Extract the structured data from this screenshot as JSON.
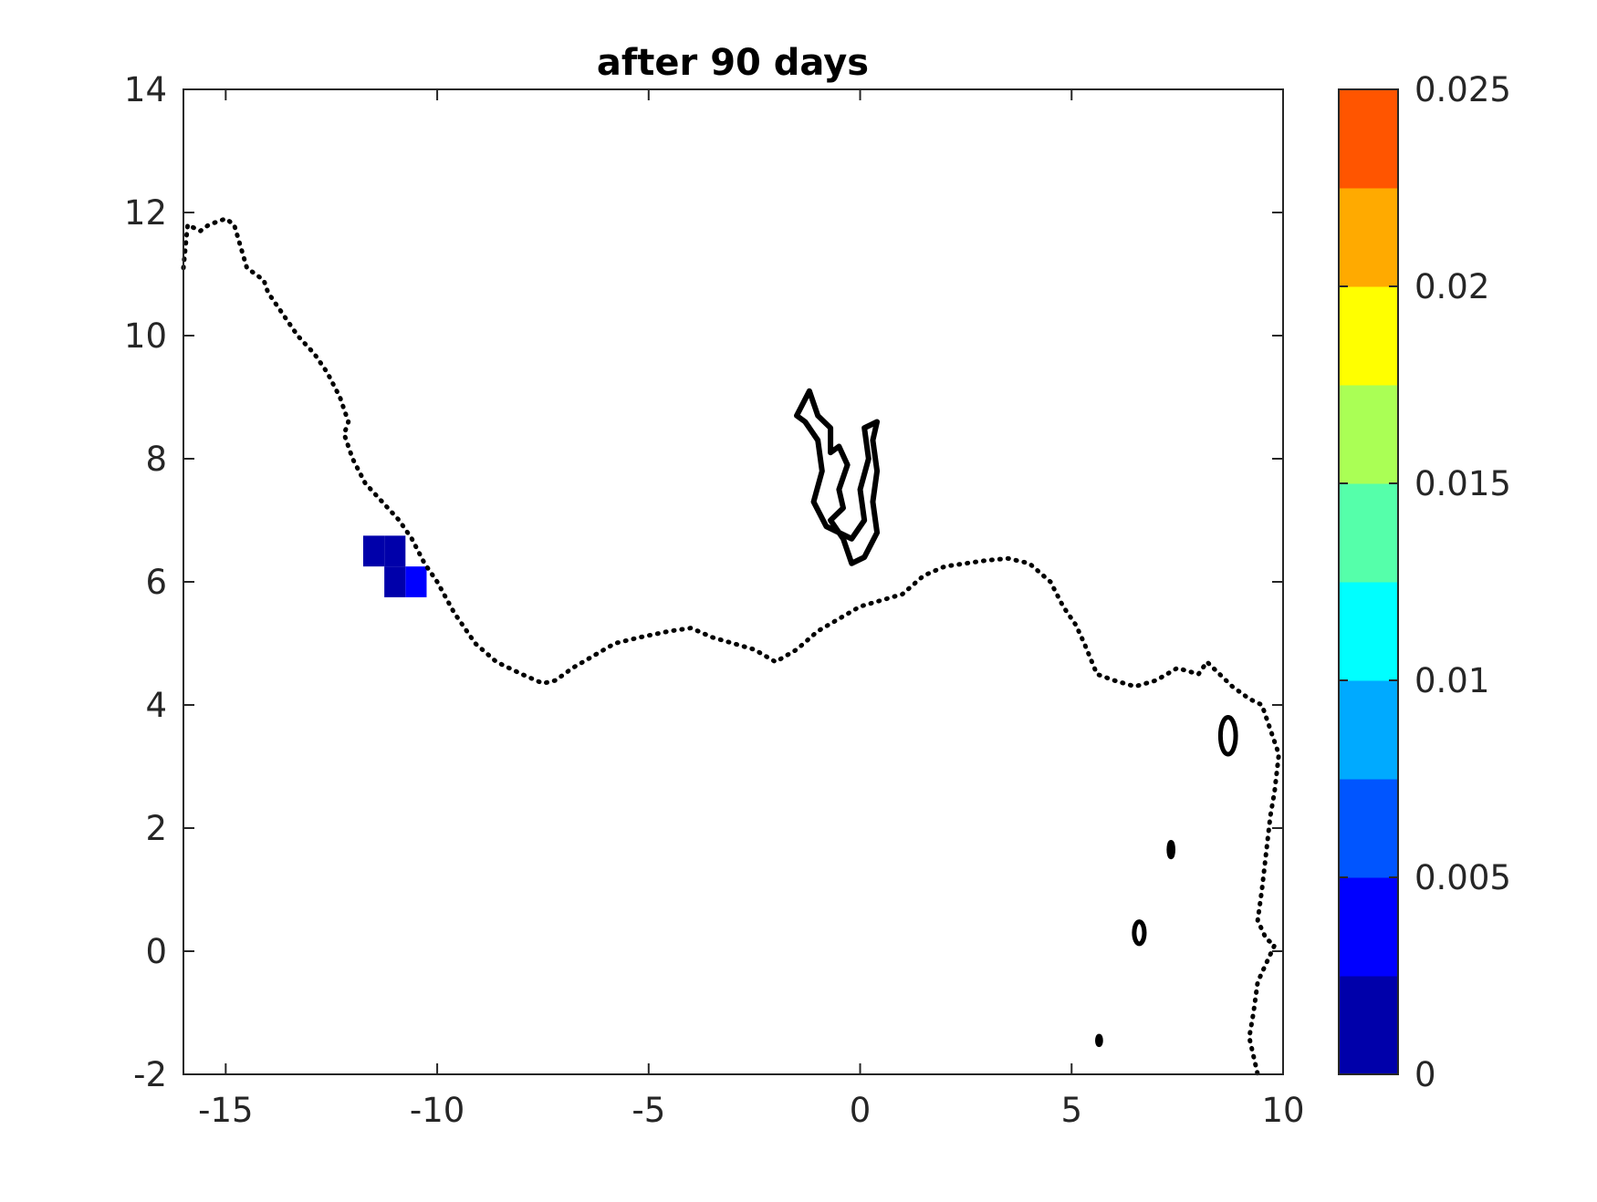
{
  "chart_data": {
    "type": "heatmap",
    "title": "after 90 days",
    "xlabel": "",
    "ylabel": "",
    "xlim": [
      -16,
      10
    ],
    "ylim": [
      -2,
      14
    ],
    "x_ticks": [
      -15,
      -10,
      -5,
      0,
      5,
      10
    ],
    "y_ticks": [
      -2,
      0,
      2,
      4,
      6,
      8,
      10,
      12,
      14
    ],
    "grid": false,
    "cell_size": 0.5,
    "cells": [
      {
        "x": -11.5,
        "y": 6.5,
        "value": 0.0005
      },
      {
        "x": -11.0,
        "y": 6.5,
        "value": 0.0005
      },
      {
        "x": -11.0,
        "y": 6.0,
        "value": 0.0008
      },
      {
        "x": -10.5,
        "y": 6.0,
        "value": 0.003
      }
    ],
    "colorbar": {
      "min": 0,
      "max": 0.025,
      "ticks": [
        0,
        0.005,
        0.01,
        0.015,
        0.02,
        0.025
      ],
      "tick_labels": [
        "0",
        "0.005",
        "0.01",
        "0.015",
        "0.02",
        "0.025"
      ],
      "colors": [
        "#0000aa",
        "#0000ff",
        "#0055ff",
        "#00aaff",
        "#00ffff",
        "#55ffaa",
        "#aaff55",
        "#ffff00",
        "#ffaa00",
        "#ff5500"
      ]
    },
    "coastline": [
      [
        -16.0,
        11.1
      ],
      [
        -15.9,
        11.8
      ],
      [
        -15.6,
        11.7
      ],
      [
        -15.4,
        11.8
      ],
      [
        -15.0,
        11.9
      ],
      [
        -14.8,
        11.8
      ],
      [
        -14.5,
        11.1
      ],
      [
        -14.1,
        10.9
      ],
      [
        -14.0,
        10.7
      ],
      [
        -13.9,
        10.6
      ],
      [
        -13.6,
        10.3
      ],
      [
        -13.3,
        10.0
      ],
      [
        -12.9,
        9.7
      ],
      [
        -12.6,
        9.4
      ],
      [
        -12.3,
        9.0
      ],
      [
        -12.1,
        8.6
      ],
      [
        -12.2,
        8.4
      ],
      [
        -12.0,
        8.0
      ],
      [
        -11.7,
        7.6
      ],
      [
        -11.3,
        7.3
      ],
      [
        -10.9,
        7.0
      ],
      [
        -10.6,
        6.7
      ],
      [
        -10.3,
        6.3
      ],
      [
        -10.0,
        6.0
      ],
      [
        -9.6,
        5.5
      ],
      [
        -9.1,
        5.0
      ],
      [
        -8.6,
        4.7
      ],
      [
        -8.0,
        4.5
      ],
      [
        -7.5,
        4.35
      ],
      [
        -7.2,
        4.4
      ],
      [
        -6.8,
        4.6
      ],
      [
        -6.3,
        4.8
      ],
      [
        -5.8,
        5.0
      ],
      [
        -5.2,
        5.1
      ],
      [
        -4.5,
        5.2
      ],
      [
        -4.0,
        5.25
      ],
      [
        -3.5,
        5.1
      ],
      [
        -3.0,
        5.0
      ],
      [
        -2.5,
        4.9
      ],
      [
        -2.0,
        4.7
      ],
      [
        -1.5,
        4.9
      ],
      [
        -1.0,
        5.2
      ],
      [
        -0.5,
        5.4
      ],
      [
        0.0,
        5.6
      ],
      [
        0.5,
        5.7
      ],
      [
        1.0,
        5.8
      ],
      [
        1.5,
        6.1
      ],
      [
        2.0,
        6.25
      ],
      [
        2.5,
        6.3
      ],
      [
        3.0,
        6.35
      ],
      [
        3.5,
        6.38
      ],
      [
        4.0,
        6.3
      ],
      [
        4.5,
        6.0
      ],
      [
        4.8,
        5.6
      ],
      [
        5.1,
        5.3
      ],
      [
        5.3,
        5.0
      ],
      [
        5.6,
        4.5
      ],
      [
        6.0,
        4.4
      ],
      [
        6.5,
        4.3
      ],
      [
        7.0,
        4.4
      ],
      [
        7.5,
        4.6
      ],
      [
        8.0,
        4.5
      ],
      [
        8.2,
        4.7
      ],
      [
        8.5,
        4.5
      ],
      [
        8.8,
        4.3
      ],
      [
        9.2,
        4.1
      ],
      [
        9.5,
        4.0
      ],
      [
        9.7,
        3.6
      ],
      [
        9.9,
        3.2
      ],
      [
        9.8,
        2.6
      ],
      [
        9.7,
        2.2
      ],
      [
        9.6,
        1.6
      ],
      [
        9.5,
        1.0
      ],
      [
        9.4,
        0.5
      ],
      [
        9.6,
        0.2
      ],
      [
        9.8,
        0.1
      ],
      [
        9.4,
        -0.5
      ],
      [
        9.3,
        -1.0
      ],
      [
        9.2,
        -1.4
      ],
      [
        9.3,
        -1.7
      ],
      [
        9.4,
        -2.0
      ]
    ],
    "lake_outline": [
      [
        -1.5,
        8.7
      ],
      [
        -1.2,
        9.1
      ],
      [
        -1.0,
        8.7
      ],
      [
        -0.7,
        8.5
      ],
      [
        -0.7,
        8.1
      ],
      [
        -0.5,
        8.2
      ],
      [
        -0.3,
        7.9
      ],
      [
        -0.5,
        7.5
      ],
      [
        -0.4,
        7.2
      ],
      [
        -0.7,
        7.0
      ],
      [
        -0.4,
        6.7
      ],
      [
        -0.2,
        6.3
      ],
      [
        0.1,
        6.4
      ],
      [
        0.4,
        6.8
      ],
      [
        0.3,
        7.3
      ],
      [
        0.4,
        7.8
      ],
      [
        0.3,
        8.3
      ],
      [
        0.4,
        8.6
      ],
      [
        0.1,
        8.5
      ],
      [
        0.2,
        8.0
      ],
      [
        0.0,
        7.5
      ],
      [
        0.1,
        7.0
      ],
      [
        -0.2,
        6.7
      ],
      [
        -0.8,
        6.9
      ],
      [
        -1.1,
        7.3
      ],
      [
        -0.9,
        7.8
      ],
      [
        -1.0,
        8.3
      ],
      [
        -1.3,
        8.6
      ],
      [
        -1.5,
        8.7
      ]
    ],
    "islands": [
      {
        "x": 8.7,
        "y": 3.5,
        "rx": 0.18,
        "ry": 0.3
      },
      {
        "x": 6.6,
        "y": 0.3,
        "rx": 0.12,
        "ry": 0.18
      },
      {
        "x": 7.35,
        "y": 1.65,
        "rx": 0.05,
        "ry": 0.12
      },
      {
        "x": 5.65,
        "y": -1.45,
        "rx": 0.04,
        "ry": 0.07
      }
    ]
  }
}
